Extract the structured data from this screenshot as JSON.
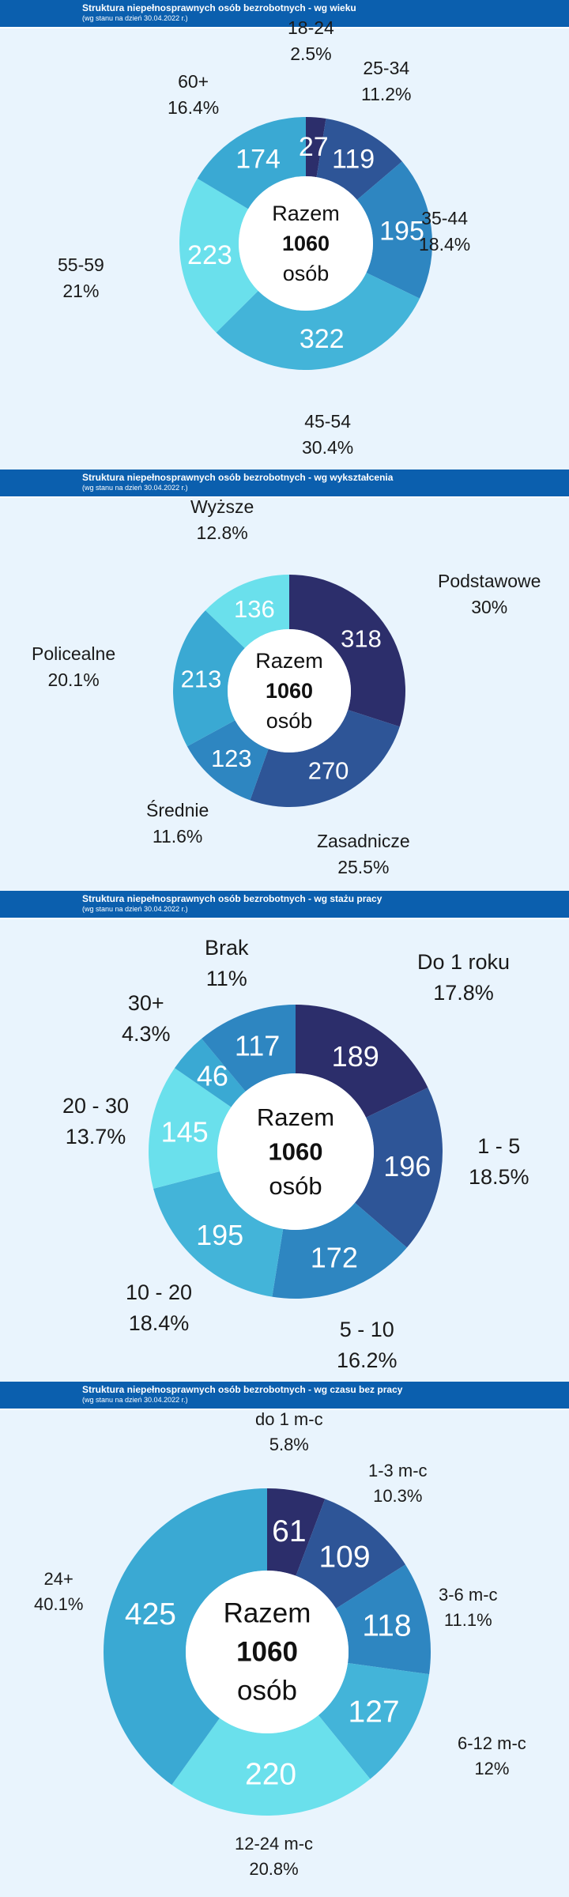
{
  "colors": {
    "header_bg": "#0b5fae",
    "page_bg": "#e9f4fd",
    "center_fill": "#ffffff",
    "slice_text": "#ffffff",
    "label_text": "#1a1a1a"
  },
  "chart_data": [
    {
      "type": "pie",
      "variant": "donut",
      "title": "Struktura niepełnosprawnych osób bezrobotnych - wg wieku",
      "subtitle": "(wg stanu na dzień 30.04.2022 r.)",
      "center": {
        "line1": "Razem",
        "line2": "1060",
        "line3": "osób"
      },
      "slices": [
        {
          "label": "18-24",
          "value": 27,
          "percent": "2.5%",
          "color": "#2c2e6b"
        },
        {
          "label": "25-34",
          "value": 119,
          "percent": "11.2%",
          "color": "#2e5597"
        },
        {
          "label": "35-44",
          "value": 195,
          "percent": "18.4%",
          "color": "#2e86c1"
        },
        {
          "label": "45-54",
          "value": 322,
          "percent": "30.4%",
          "color": "#43b4d9"
        },
        {
          "label": "55-59",
          "value": 223,
          "percent": "21%",
          "color": "#6ae0ec"
        },
        {
          "label": "60+",
          "value": 174,
          "percent": "16.4%",
          "color": "#3aa9d3"
        }
      ]
    },
    {
      "type": "pie",
      "variant": "donut",
      "title": "Struktura niepełnosprawnych osób bezrobotnych - wg wykształcenia",
      "subtitle": "(wg stanu na dzień 30.04.2022 r.)",
      "center": {
        "line1": "Razem",
        "line2": "1060",
        "line3": "osób"
      },
      "slices": [
        {
          "label": "Podstawowe",
          "value": 318,
          "percent": "30%",
          "color": "#2c2e6b"
        },
        {
          "label": "Zasadnicze",
          "value": 270,
          "percent": "25.5%",
          "color": "#2e5597"
        },
        {
          "label": "Średnie",
          "value": 123,
          "percent": "11.6%",
          "color": "#2e86c1"
        },
        {
          "label": "Policealne",
          "value": 213,
          "percent": "20.1%",
          "color": "#3aa9d3"
        },
        {
          "label": "Wyższe",
          "value": 136,
          "percent": "12.8%",
          "color": "#6ae0ec"
        }
      ]
    },
    {
      "type": "pie",
      "variant": "donut",
      "title": "Struktura niepełnosprawnych osób bezrobotnych - wg stażu pracy",
      "subtitle": "(wg stanu na dzień 30.04.2022 r.)",
      "center": {
        "line1": "Razem",
        "line2": "1060",
        "line3": "osób"
      },
      "slices": [
        {
          "label": "Do 1 roku",
          "value": 189,
          "percent": "17.8%",
          "color": "#2c2e6b"
        },
        {
          "label": "1 - 5",
          "value": 196,
          "percent": "18.5%",
          "color": "#2e5597"
        },
        {
          "label": "5 - 10",
          "value": 172,
          "percent": "16.2%",
          "color": "#2e86c1"
        },
        {
          "label": "10 - 20",
          "value": 195,
          "percent": "18.4%",
          "color": "#43b4d9"
        },
        {
          "label": "20 - 30",
          "value": 145,
          "percent": "13.7%",
          "color": "#6ae0ec"
        },
        {
          "label": "30+",
          "value": 46,
          "percent": "4.3%",
          "color": "#3aa9d3"
        },
        {
          "label": "Brak",
          "value": 117,
          "percent": "11%",
          "color": "#2e86c1"
        }
      ]
    },
    {
      "type": "pie",
      "variant": "donut",
      "title": "Struktura niepełnosprawnych osób bezrobotnych - wg czasu bez pracy",
      "subtitle": "(wg stanu na dzień 30.04.2022 r.)",
      "center": {
        "line1": "Razem",
        "line2": "1060",
        "line3": "osób"
      },
      "slices": [
        {
          "label": "do 1 m-c",
          "value": 61,
          "percent": "5.8%",
          "color": "#2c2e6b"
        },
        {
          "label": "1-3 m-c",
          "value": 109,
          "percent": "10.3%",
          "color": "#2e5597"
        },
        {
          "label": "3-6 m-c",
          "value": 118,
          "percent": "11.1%",
          "color": "#2e86c1"
        },
        {
          "label": "6-12 m-c",
          "value": 127,
          "percent": "12%",
          "color": "#43b4d9"
        },
        {
          "label": "12-24 m-c",
          "value": 220,
          "percent": "20.8%",
          "color": "#6ae0ec"
        },
        {
          "label": "24+",
          "value": 425,
          "percent": "40.1%",
          "color": "#3aa9d3"
        }
      ]
    }
  ]
}
